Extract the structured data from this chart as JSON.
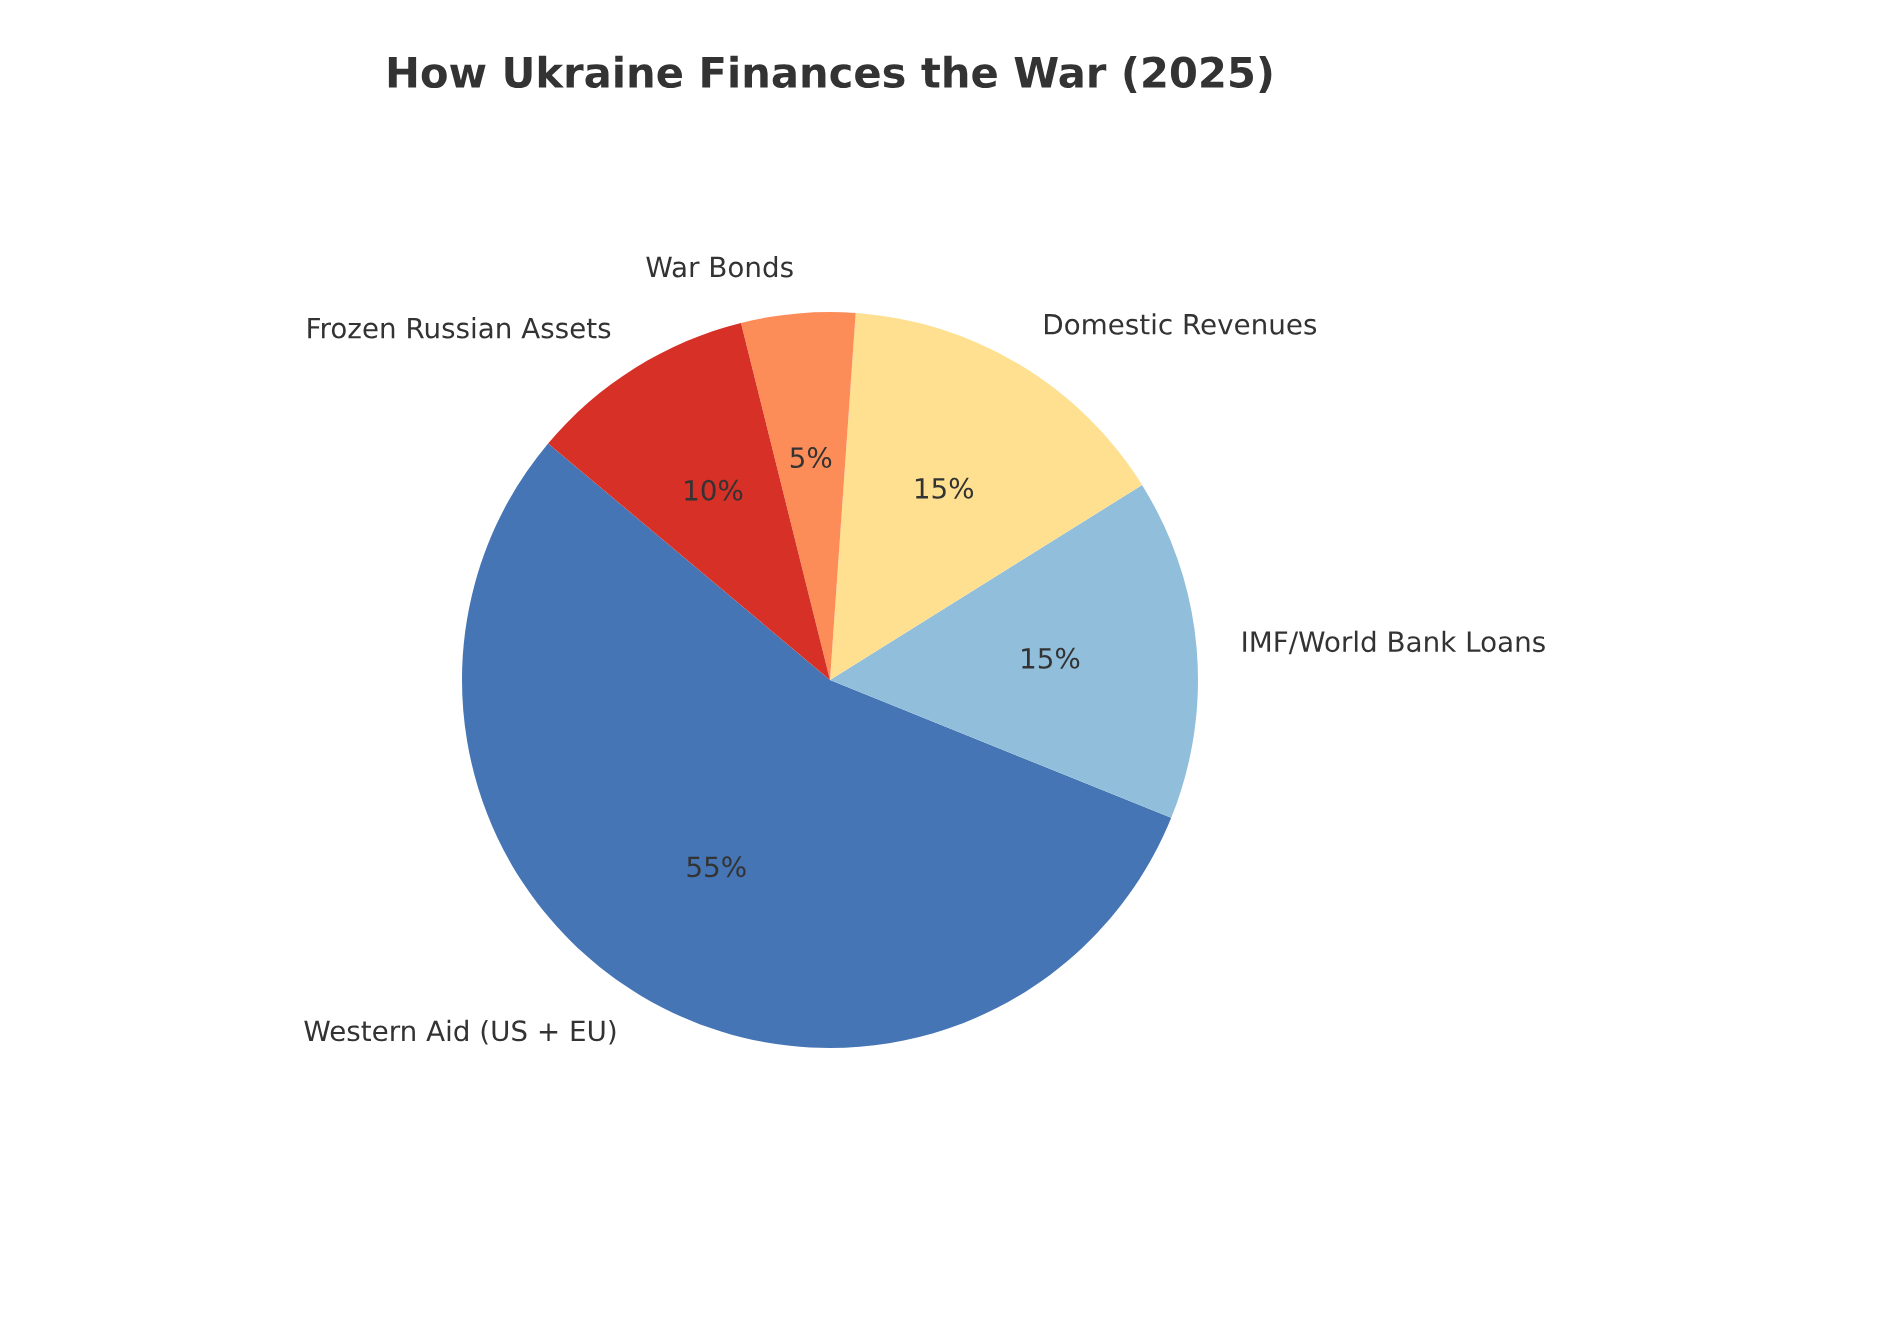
{
  "chart_data": {
    "type": "pie",
    "title": "How Ukraine Finances the War (2025)",
    "categories": [
      "Western Aid (US + EU)",
      "IMF/World Bank Loans",
      "Domestic Revenues",
      "War Bonds",
      "Frozen Russian Assets"
    ],
    "values": [
      55,
      15,
      15,
      5,
      10
    ],
    "colors": [
      "#4575b4",
      "#91bfdb",
      "#fee090",
      "#fc8d59",
      "#d73027"
    ],
    "value_labels": [
      "55%",
      "15%",
      "15%",
      "5%",
      "10%"
    ]
  }
}
